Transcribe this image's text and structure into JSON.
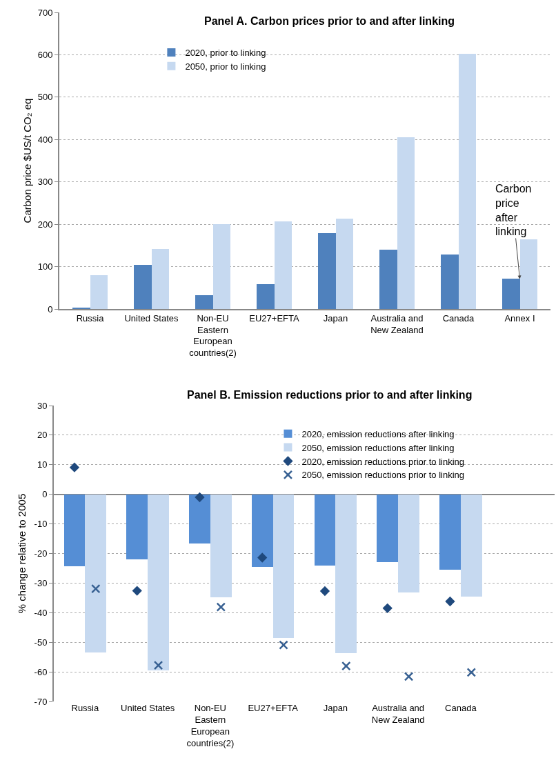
{
  "chart_data": [
    {
      "type": "bar",
      "title": "Panel A. Carbon prices prior to and after linking",
      "ylabel": "Carbon price $US/t CO₂ eq",
      "categories": [
        "Russia",
        "United States",
        "Non-EU Eastern European countries(2)",
        "EU27+EFTA",
        "Japan",
        "Australia and New Zealand",
        "Canada",
        "Annex I"
      ],
      "series": [
        {
          "name": "2020, prior to linking",
          "color": "#4f81bd",
          "values": [
            4,
            105,
            32,
            59,
            179,
            140,
            129,
            71
          ]
        },
        {
          "name": "2050, prior to linking",
          "color": "#c6d9f0",
          "values": [
            80,
            142,
            201,
            206,
            213,
            405,
            603,
            165
          ]
        }
      ],
      "ylim": [
        0,
        700
      ],
      "yticks": [
        0,
        100,
        200,
        300,
        400,
        500,
        600,
        700
      ],
      "grid": "y",
      "legend": "top left",
      "annotations": [
        {
          "text": "Carbon price after linking",
          "x": "Annex I",
          "y": 71
        }
      ]
    },
    {
      "type": "bar",
      "title": "Panel B. Emission reductions prior to and after linking",
      "ylabel": "% change relative to 2005",
      "categories": [
        "Russia",
        "United States",
        "Non-EU Eastern European countries(2)",
        "EU27+EFTA",
        "Japan",
        "Australia and New Zealand",
        "Canada",
        null
      ],
      "series": [
        {
          "name": "2020, emission reductions after linking",
          "color": "#558ed5",
          "values": [
            -24.2,
            -21.9,
            -16.7,
            -24.6,
            -24.0,
            -23.0,
            -25.5,
            null
          ]
        },
        {
          "name": "2050, emission reductions after linking",
          "color": "#c6d9f0",
          "values": [
            -53.5,
            -59.5,
            -34.7,
            -48.6,
            -53.7,
            -33.1,
            -34.5,
            null
          ]
        },
        {
          "name": "2020, emission reductions prior to linking",
          "type": "scatter",
          "marker": "diamond",
          "color": "#1f497d",
          "values": [
            9.1,
            -32.6,
            -1.0,
            -21.4,
            -32.7,
            -38.5,
            -36.2,
            null
          ]
        },
        {
          "name": "2050, emission reductions prior to linking",
          "type": "scatter",
          "marker": "cross",
          "color": "#376092",
          "values": [
            -31.9,
            -57.8,
            -38.1,
            -50.9,
            -58.0,
            -61.6,
            -60.2,
            null
          ]
        }
      ],
      "ylim": [
        -70,
        30
      ],
      "yticks": [
        -70,
        -60,
        -50,
        -40,
        -30,
        -20,
        -10,
        0,
        10,
        20,
        30
      ],
      "grid": "y",
      "legend": "top right"
    }
  ]
}
